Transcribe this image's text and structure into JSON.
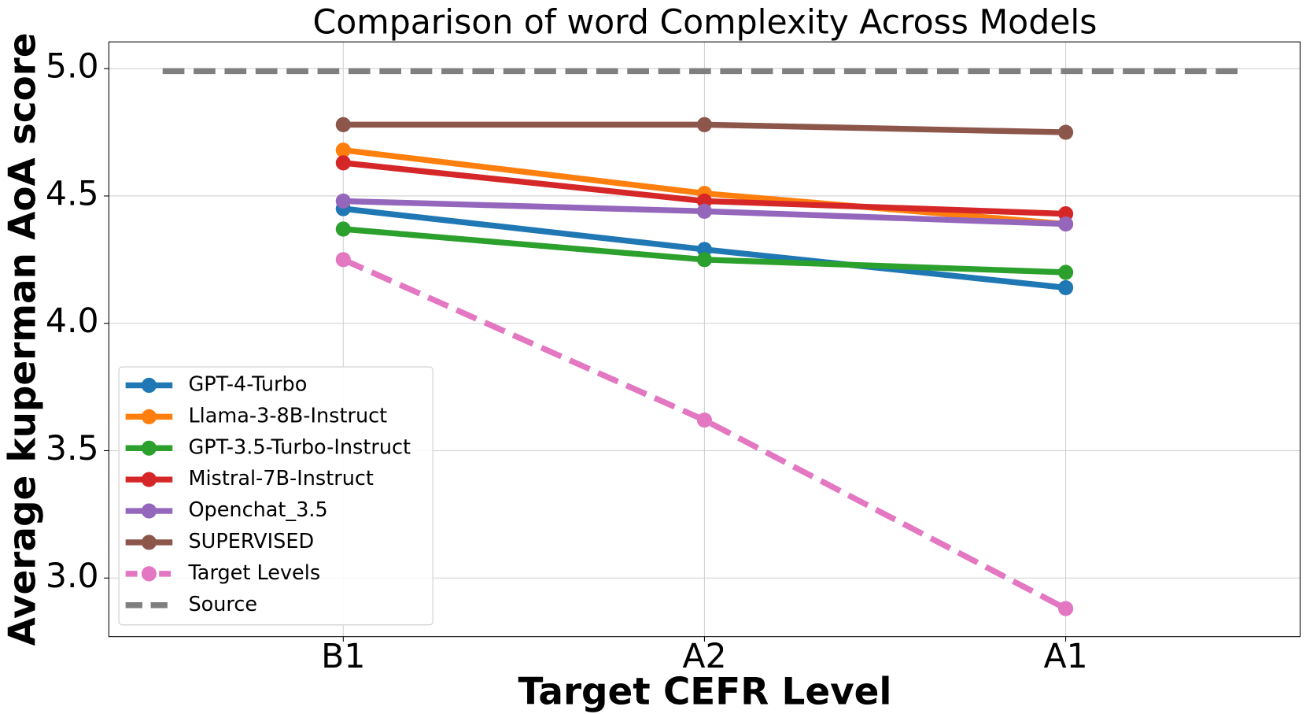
{
  "chart_data": {
    "type": "line",
    "title": "Comparison of word Complexity Across Models",
    "x_label": "Target CEFR Level",
    "y_label": "Average kuperman AoA score",
    "categories": [
      "B1",
      "A2",
      "A1"
    ],
    "series": [
      {
        "name": "GPT-4-Turbo",
        "color": "#1f77b4",
        "values": [
          4.45,
          4.29,
          4.14
        ]
      },
      {
        "name": "Llama-3-8B-Instruct",
        "color": "#ff7f0e",
        "values": [
          4.68,
          4.51,
          4.39
        ]
      },
      {
        "name": "GPT-3.5-Turbo-Instruct",
        "color": "#2ca02c",
        "values": [
          4.37,
          4.25,
          4.2
        ]
      },
      {
        "name": "Mistral-7B-Instruct",
        "color": "#d62728",
        "values": [
          4.63,
          4.48,
          4.43
        ]
      },
      {
        "name": "Openchat_3.5",
        "color": "#9467bd",
        "values": [
          4.48,
          4.44,
          4.39
        ]
      },
      {
        "name": "SUPERVISED",
        "color": "#8c564b",
        "values": [
          4.78,
          4.78,
          4.75
        ]
      },
      {
        "name": "Target Levels",
        "color": "#e377c2",
        "dashed": true,
        "values": [
          4.25,
          3.62,
          2.88
        ]
      }
    ],
    "reference_line": {
      "name": "Source",
      "color": "#7f7f7f",
      "value": 4.99
    },
    "ylim": [
      2.77,
      5.105
    ],
    "yticks": [
      {
        "value": 3,
        "label": "3.0"
      },
      3.5,
      {
        "value": 4,
        "label": "4.0"
      },
      4.5,
      {
        "value": 5,
        "label": "5.0"
      }
    ],
    "grid": true,
    "legend": "lower left"
  }
}
